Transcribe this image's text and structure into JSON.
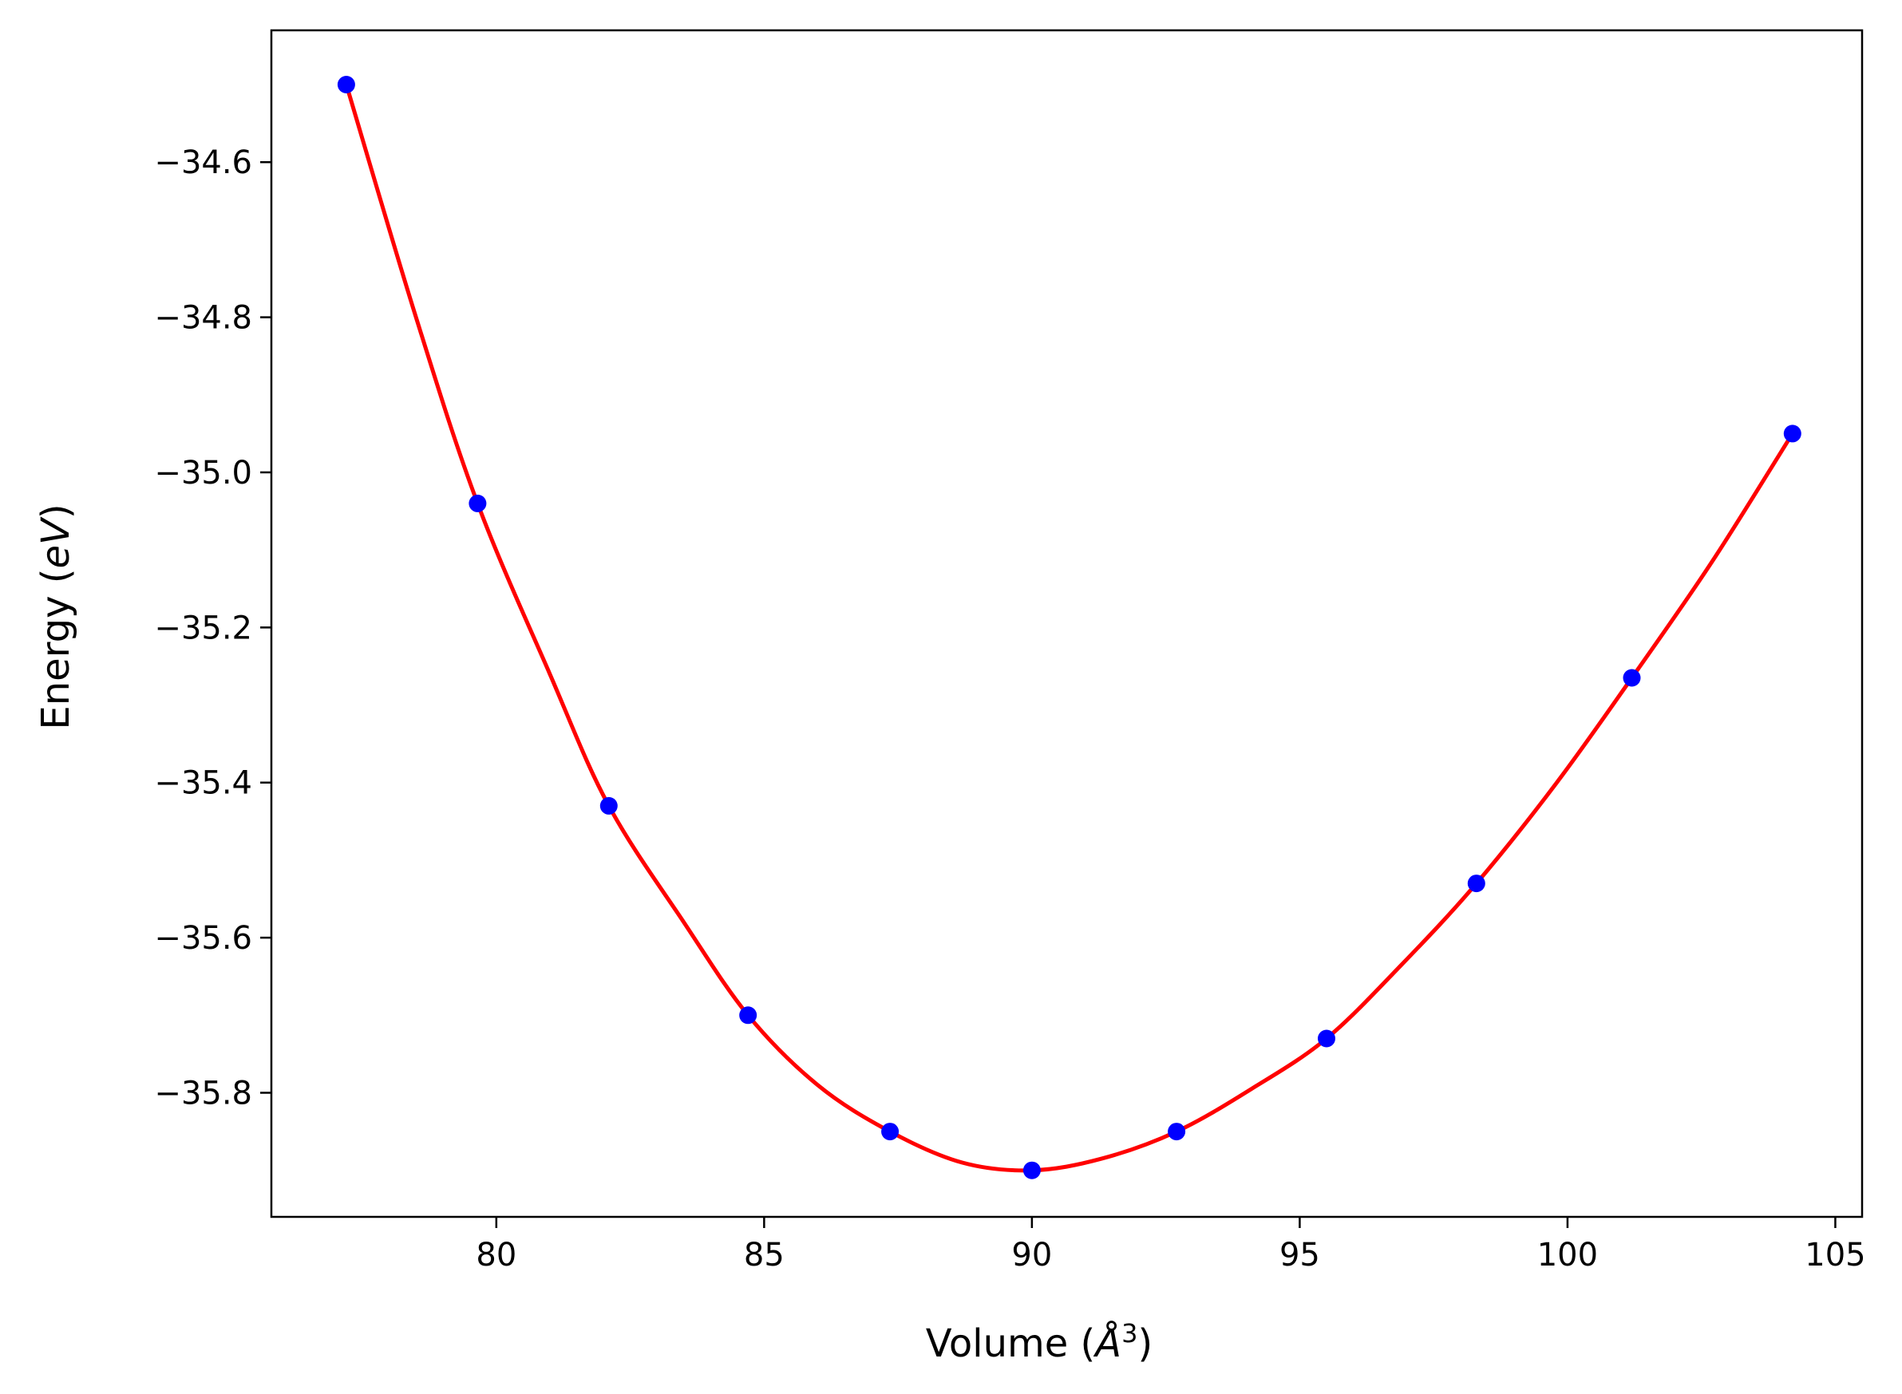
{
  "chart_data": {
    "type": "scatter",
    "title": "",
    "xlabel": "Volume ($\\AA^3$)",
    "xlabel_parts": {
      "prefix": "Volume (",
      "unit_base": "Å",
      "unit_exp": "3",
      "suffix": ")"
    },
    "ylabel": "Energy ($eV$)",
    "ylabel_parts": {
      "prefix": "Energy (",
      "unit": "eV",
      "suffix": ")"
    },
    "xlim": [
      75.8,
      105.5
    ],
    "ylim": [
      -35.96,
      -34.43
    ],
    "x_ticks": [
      80,
      85,
      90,
      95,
      100,
      105
    ],
    "y_ticks": [
      -34.6,
      -34.8,
      -35.0,
      -35.2,
      -35.4,
      -35.6,
      -35.8
    ],
    "x_tick_labels": [
      "80",
      "85",
      "90",
      "95",
      "100",
      "105"
    ],
    "y_tick_labels": [
      "−34.6",
      "−34.8",
      "−35.0",
      "−35.2",
      "−35.4",
      "−35.6",
      "−35.8"
    ],
    "grid": false,
    "legend": "none",
    "series": [
      {
        "type": "scatter",
        "color": "#0000ff",
        "x": [
          77.2,
          79.65,
          82.1,
          84.7,
          87.35,
          90.0,
          92.7,
          95.5,
          98.3,
          101.2,
          104.2
        ],
        "y": [
          -34.5,
          -35.04,
          -35.43,
          -35.7,
          -35.85,
          -35.9,
          -35.85,
          -35.73,
          -35.53,
          -35.265,
          -34.95
        ]
      },
      {
        "type": "line",
        "color": "#ff0000",
        "x": [
          77.2,
          78.5,
          79.65,
          81.0,
          82.1,
          83.5,
          84.7,
          86.0,
          87.35,
          88.7,
          90.0,
          91.3,
          92.7,
          94.1,
          95.5,
          96.9,
          98.3,
          99.8,
          101.2,
          102.7,
          104.2
        ],
        "y": [
          -34.5,
          -34.8,
          -35.04,
          -35.26,
          -35.43,
          -35.58,
          -35.7,
          -35.79,
          -35.85,
          -35.89,
          -35.9,
          -35.885,
          -35.85,
          -35.795,
          -35.73,
          -35.635,
          -35.53,
          -35.4,
          -35.265,
          -35.115,
          -34.95
        ]
      }
    ]
  }
}
